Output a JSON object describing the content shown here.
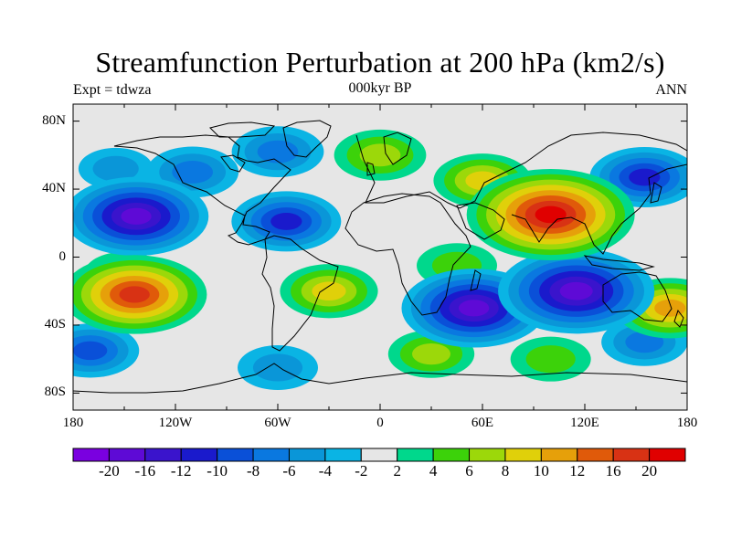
{
  "header": {
    "title": "Streamfunction Perturbation at 200 hPa (km2/s)",
    "left_label": "Expt = tdwza",
    "center_label": "000kyr BP",
    "right_label": "ANN"
  },
  "map": {
    "projection": "cylindrical equidistant",
    "lon_range": [
      -180,
      180
    ],
    "lat_range": [
      -90,
      90
    ],
    "lat_ticks": [
      {
        "value": 80,
        "label": "80N"
      },
      {
        "value": 40,
        "label": "40N"
      },
      {
        "value": 0,
        "label": "0"
      },
      {
        "value": -40,
        "label": "40S"
      },
      {
        "value": -80,
        "label": "80S"
      }
    ],
    "lon_ticks": [
      {
        "value": -180,
        "label": "180"
      },
      {
        "value": -120,
        "label": "120W"
      },
      {
        "value": -60,
        "label": "60W"
      },
      {
        "value": 0,
        "label": "0"
      },
      {
        "value": 60,
        "label": "60E"
      },
      {
        "value": 120,
        "label": "120E"
      },
      {
        "value": 180,
        "label": "180"
      }
    ],
    "field_features": [
      {
        "lon": -143,
        "lat": 24,
        "value": -16
      },
      {
        "lon": -55,
        "lat": 21,
        "value": -10
      },
      {
        "lon": -110,
        "lat": 50,
        "value": -7
      },
      {
        "lon": -60,
        "lat": 62,
        "value": -7
      },
      {
        "lon": -155,
        "lat": 52,
        "value": -4
      },
      {
        "lon": -144,
        "lat": -22,
        "value": 16
      },
      {
        "lon": -150,
        "lat": -10,
        "value": 5
      },
      {
        "lon": -30,
        "lat": -20,
        "value": 8
      },
      {
        "lon": 0,
        "lat": 60,
        "value": 7
      },
      {
        "lon": 60,
        "lat": 45,
        "value": 8
      },
      {
        "lon": 100,
        "lat": 25,
        "value": 20
      },
      {
        "lon": 155,
        "lat": 47,
        "value": -10
      },
      {
        "lon": 55,
        "lat": -30,
        "value": -16
      },
      {
        "lon": 115,
        "lat": -20,
        "value": -18
      },
      {
        "lon": 170,
        "lat": -30,
        "value": 10
      },
      {
        "lon": -170,
        "lat": -55,
        "value": -8
      },
      {
        "lon": 30,
        "lat": -57,
        "value": 6
      },
      {
        "lon": 100,
        "lat": -60,
        "value": 5
      },
      {
        "lon": -60,
        "lat": -65,
        "value": -5
      },
      {
        "lon": 155,
        "lat": -50,
        "value": -6
      },
      {
        "lon": 45,
        "lat": -5,
        "value": 5
      }
    ]
  },
  "colorbar": {
    "levels": [
      -20,
      -16,
      -12,
      -10,
      -8,
      -6,
      -4,
      -2,
      2,
      4,
      6,
      8,
      10,
      12,
      16,
      20
    ],
    "labels": [
      "-20",
      "-16",
      "-12",
      "-10",
      "-8",
      "-6",
      "-4",
      "-2",
      "2",
      "4",
      "6",
      "8",
      "10",
      "12",
      "16",
      "20"
    ],
    "colors": [
      "#7a00e0",
      "#5e0ad6",
      "#3a14cc",
      "#1a1acc",
      "#0a50d8",
      "#0a78e0",
      "#0a96d8",
      "#0ab4e4",
      "#e6e6e6",
      "#00d88c",
      "#3cd20a",
      "#9cd80a",
      "#e0d00a",
      "#e6a00a",
      "#e05a0a",
      "#d83214",
      "#e00000"
    ]
  }
}
